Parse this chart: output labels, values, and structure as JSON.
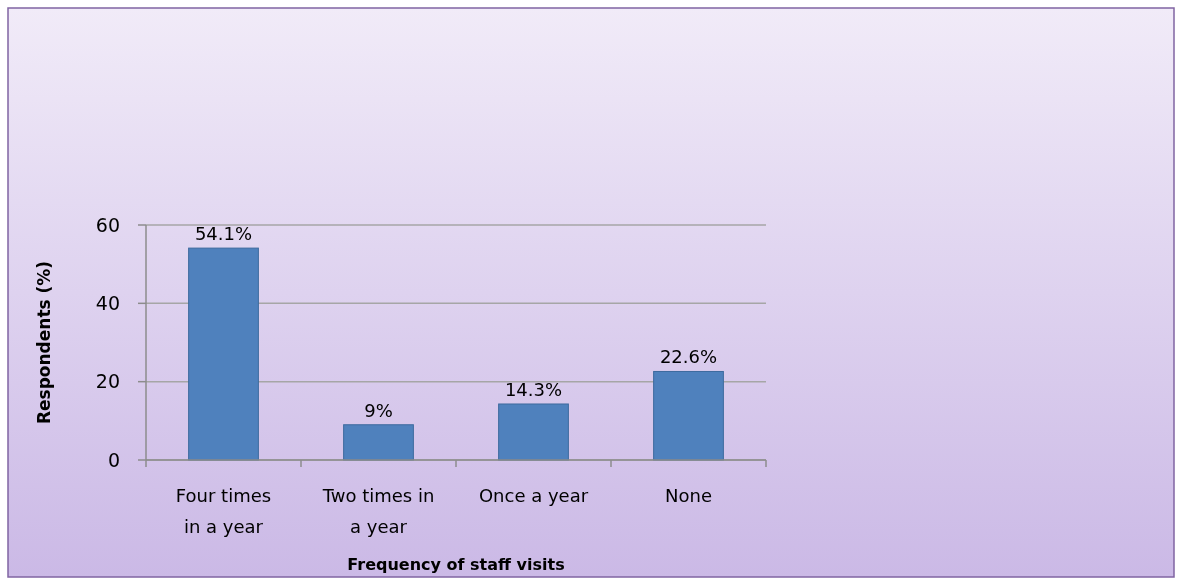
{
  "chart_data": {
    "type": "bar",
    "xlabel": "Frequency of staff visits",
    "ylabel": "Respondents (%)",
    "categories": [
      "Four times in a year",
      "Two times in a year",
      "Once a year",
      "None"
    ],
    "values": [
      54.1,
      9,
      14.3,
      22.6
    ],
    "color": "#4f81bd",
    "value_labels": [
      "54.1%",
      "9%",
      "14.3%",
      "22.6%"
    ],
    "ylim": [
      0,
      60
    ],
    "yticks": [
      0,
      20,
      40,
      60
    ],
    "grid": "y"
  }
}
